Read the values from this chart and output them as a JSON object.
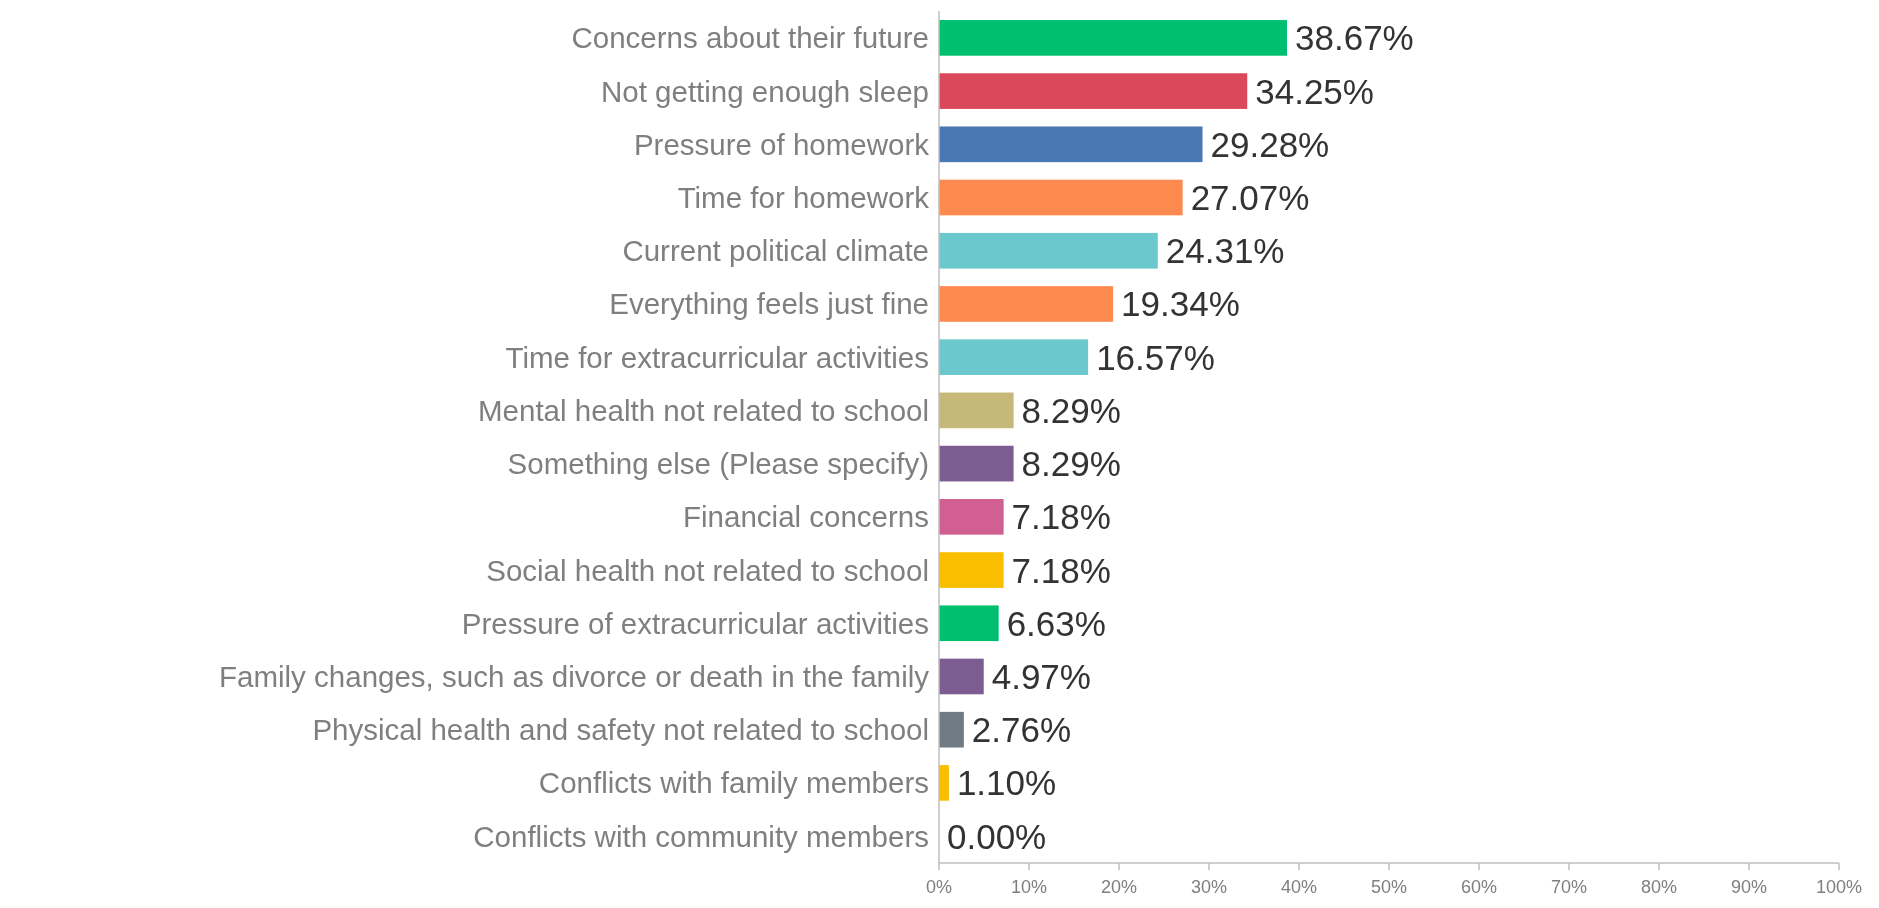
{
  "chart_data": {
    "type": "bar",
    "orientation": "horizontal",
    "categories": [
      "Concerns about their future",
      "Not getting enough sleep",
      "Pressure of homework",
      "Time for homework",
      "Current political climate",
      "Everything feels just fine",
      "Time for extracurricular activities",
      "Mental health not related to school",
      "Something else (Please specify)",
      "Financial concerns",
      "Social health not related to school",
      "Pressure of extracurricular activities",
      "Family changes, such as divorce or death in the family",
      "Physical health and safety not related to school",
      "Conflicts with family members",
      "Conflicts with community members"
    ],
    "values": [
      38.67,
      34.25,
      29.28,
      27.07,
      24.31,
      19.34,
      16.57,
      8.29,
      8.29,
      7.18,
      7.18,
      6.63,
      4.97,
      2.76,
      1.1,
      0.0
    ],
    "value_labels": [
      "38.67%",
      "34.25%",
      "29.28%",
      "27.07%",
      "24.31%",
      "19.34%",
      "16.57%",
      "8.29%",
      "8.29%",
      "7.18%",
      "7.18%",
      "6.63%",
      "4.97%",
      "2.76%",
      "1.10%",
      "0.00%"
    ],
    "colors": [
      "#00bf6f",
      "#d9495b",
      "#4a78b5",
      "#ff8a4f",
      "#6bc8cc",
      "#ff8a4f",
      "#6bc8cc",
      "#c6b878",
      "#7d5c91",
      "#d25f91",
      "#f9be00",
      "#00bf6f",
      "#7d5c91",
      "#6e7b85",
      "#f9be00",
      "#a0a0a0"
    ],
    "xlim": [
      0,
      100
    ],
    "xticks": [
      {
        "value": 0,
        "label": "0%"
      },
      {
        "value": 10,
        "label": "10%"
      },
      {
        "value": 20,
        "label": "20%"
      },
      {
        "value": 30,
        "label": "30%"
      },
      {
        "value": 40,
        "label": "40%"
      },
      {
        "value": 50,
        "label": "50%"
      },
      {
        "value": 60,
        "label": "60%"
      },
      {
        "value": 70,
        "label": "70%"
      },
      {
        "value": 80,
        "label": "80%"
      },
      {
        "value": 90,
        "label": "90%"
      },
      {
        "value": 100,
        "label": "100%"
      }
    ],
    "grid": false
  }
}
